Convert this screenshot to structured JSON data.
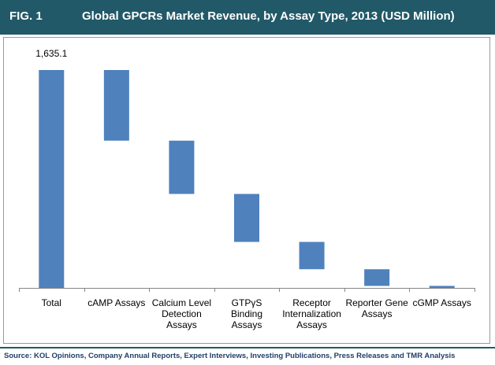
{
  "header": {
    "fig_label": "FIG. 1",
    "title": "Global GPCRs Market Revenue, by Assay Type, 2013 (USD Million)"
  },
  "footer": {
    "source": "Source: KOL Opinions, Company Annual Reports, Expert Interviews, Investing Publications, Press Releases and TMR Analysis"
  },
  "colors": {
    "header_bg": "#215968",
    "bar": "#4f81bd"
  },
  "chart_data": {
    "type": "bar",
    "subtype": "waterfall",
    "title": "Global GPCRs Market Revenue, by Assay Type, 2013 (USD Million)",
    "xlabel": "",
    "ylabel": "",
    "ylim": [
      0,
      1635.1
    ],
    "grid": false,
    "legend": "none",
    "categories": [
      [
        "Total"
      ],
      [
        "cAMP Assays"
      ],
      [
        "Calcium Level",
        "Detection",
        "Assays"
      ],
      [
        "GTPγS",
        "Binding",
        "Assays"
      ],
      [
        "Receptor",
        "Internalization",
        "Assays"
      ],
      [
        "Reporter Gene",
        "Assays"
      ],
      [
        "cGMP Assays"
      ]
    ],
    "total": 1635.1,
    "values": [
      1635.1,
      530,
      400,
      360,
      205,
      125,
      15
    ],
    "data_labels": [
      "1,635.1",
      "",
      "",
      "",
      "",
      "",
      ""
    ]
  }
}
